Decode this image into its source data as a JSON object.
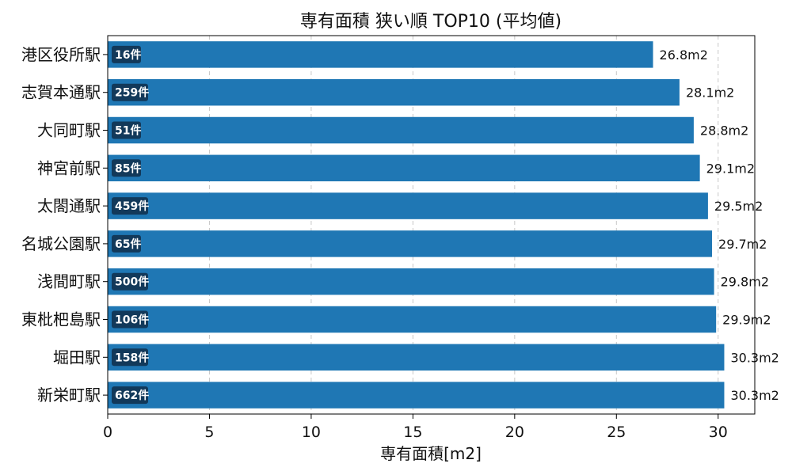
{
  "chart_data": {
    "type": "bar",
    "orientation": "horizontal",
    "title": "専有面積 狭い順 TOP10 (平均値)",
    "xlabel": "専有面積[m2]",
    "ylabel": "",
    "xlim": [
      0,
      31.8
    ],
    "xticks": [
      "0",
      "5",
      "10",
      "15",
      "20",
      "25",
      "30"
    ],
    "grid": "x-dashed",
    "bar_color": "#1f77b4",
    "badge_color": "#12395a",
    "categories": [
      "港区役所駅",
      "志賀本通駅",
      "大同町駅",
      "神宮前駅",
      "太閤通駅",
      "名城公園駅",
      "浅間町駅",
      "東枇杷島駅",
      "堀田駅",
      "新栄町駅"
    ],
    "values": [
      26.8,
      28.1,
      28.8,
      29.1,
      29.5,
      29.7,
      29.8,
      29.9,
      30.3,
      30.3
    ],
    "value_labels": [
      "26.8m2",
      "28.1m2",
      "28.8m2",
      "29.1m2",
      "29.5m2",
      "29.7m2",
      "29.8m2",
      "29.9m2",
      "30.3m2",
      "30.3m2"
    ],
    "counts": [
      "16件",
      "259件",
      "51件",
      "85件",
      "459件",
      "65件",
      "500件",
      "106件",
      "158件",
      "662件"
    ]
  }
}
